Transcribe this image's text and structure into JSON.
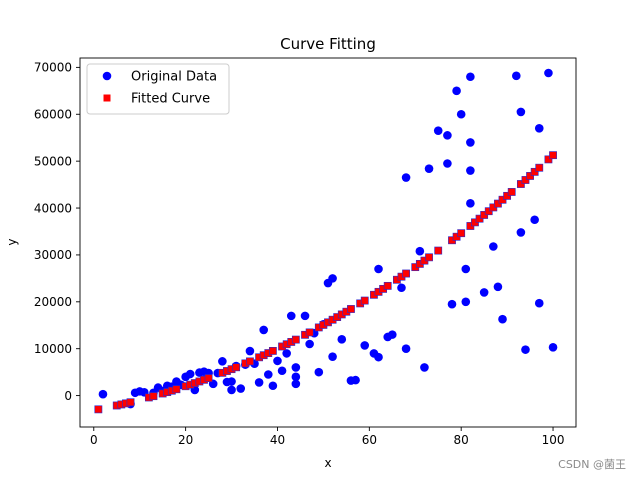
{
  "chart_data": {
    "type": "scatter",
    "title": "Curve Fitting",
    "xlabel": "x",
    "ylabel": "y",
    "xlim": [
      -3,
      105
    ],
    "ylim": [
      -6700,
      72000
    ],
    "xticks": [
      0,
      20,
      40,
      60,
      80,
      100
    ],
    "yticks": [
      0,
      10000,
      20000,
      30000,
      40000,
      50000,
      60000,
      70000
    ],
    "grid": false,
    "legend_position": "top-left",
    "series": [
      {
        "name": "Original Data",
        "marker": "circle",
        "color": "#0000ff",
        "points": [
          [
            2,
            300
          ],
          [
            8,
            -1800
          ],
          [
            9,
            600
          ],
          [
            10,
            900
          ],
          [
            11,
            700
          ],
          [
            13,
            600
          ],
          [
            14,
            1700
          ],
          [
            15,
            1000
          ],
          [
            16,
            2100
          ],
          [
            17,
            1900
          ],
          [
            18,
            3000
          ],
          [
            19,
            2300
          ],
          [
            20,
            4000
          ],
          [
            21,
            4600
          ],
          [
            22,
            1200
          ],
          [
            23,
            4900
          ],
          [
            24,
            5100
          ],
          [
            25,
            4800
          ],
          [
            26,
            2500
          ],
          [
            27,
            4800
          ],
          [
            28,
            7300
          ],
          [
            29,
            2900
          ],
          [
            30,
            3000
          ],
          [
            30,
            1200
          ],
          [
            31,
            6300
          ],
          [
            32,
            1500
          ],
          [
            33,
            6600
          ],
          [
            34,
            9500
          ],
          [
            35,
            6800
          ],
          [
            36,
            2800
          ],
          [
            37,
            14000
          ],
          [
            38,
            4500
          ],
          [
            39,
            2100
          ],
          [
            40,
            7400
          ],
          [
            41,
            5300
          ],
          [
            42,
            9000
          ],
          [
            43,
            17000
          ],
          [
            44,
            6000
          ],
          [
            44,
            4000
          ],
          [
            44,
            2500
          ],
          [
            46,
            17000
          ],
          [
            47,
            11000
          ],
          [
            48,
            13300
          ],
          [
            49,
            5000
          ],
          [
            50,
            15200
          ],
          [
            51,
            24000
          ],
          [
            52,
            25000
          ],
          [
            52,
            8300
          ],
          [
            54,
            12000
          ],
          [
            56,
            3200
          ],
          [
            57,
            3300
          ],
          [
            59,
            10700
          ],
          [
            61,
            9000
          ],
          [
            62,
            27000
          ],
          [
            62,
            8200
          ],
          [
            64,
            12500
          ],
          [
            65,
            13000
          ],
          [
            67,
            23000
          ],
          [
            68,
            10000
          ],
          [
            68,
            46500
          ],
          [
            71,
            30800
          ],
          [
            72,
            6000
          ],
          [
            73,
            48400
          ],
          [
            75,
            56500
          ],
          [
            77,
            55500
          ],
          [
            77,
            49500
          ],
          [
            78,
            19500
          ],
          [
            79,
            65000
          ],
          [
            80,
            60000
          ],
          [
            81,
            27000
          ],
          [
            81,
            20000
          ],
          [
            82,
            68000
          ],
          [
            82,
            54000
          ],
          [
            82,
            48000
          ],
          [
            82,
            41000
          ],
          [
            85,
            22000
          ],
          [
            87,
            31800
          ],
          [
            88,
            23200
          ],
          [
            89,
            16300
          ],
          [
            92,
            68200
          ],
          [
            93,
            60500
          ],
          [
            93,
            34800
          ],
          [
            94,
            9800
          ],
          [
            96,
            37500
          ],
          [
            97,
            57000
          ],
          [
            97,
            19700
          ],
          [
            99,
            68800
          ],
          [
            100,
            10300
          ]
        ]
      },
      {
        "name": "Fitted Curve",
        "marker": "square",
        "color": "#ff0000",
        "x": [
          1,
          5,
          6,
          7,
          8,
          12,
          13,
          15,
          16,
          17,
          18,
          20,
          21,
          22,
          23,
          24,
          25,
          28,
          29,
          30,
          31,
          33,
          34,
          36,
          37,
          38,
          39,
          41,
          42,
          43,
          44,
          46,
          47,
          49,
          50,
          51,
          52,
          53,
          54,
          55,
          56,
          58,
          59,
          61,
          62,
          63,
          64,
          66,
          67,
          68,
          70,
          71,
          72,
          73,
          75,
          78,
          79,
          80,
          82,
          83,
          84,
          85,
          86,
          87,
          88,
          89,
          90,
          91,
          93,
          94,
          95,
          96,
          97,
          99,
          100
        ],
        "fit": {
          "form": "a*x^2 + b*x + c",
          "a": 3.6,
          "b": 184,
          "c": -3124
        }
      }
    ]
  },
  "watermark": "CSDN @菌王"
}
